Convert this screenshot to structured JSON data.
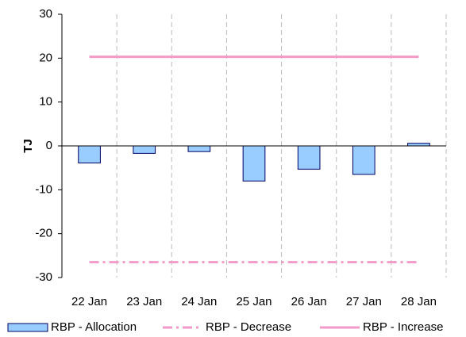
{
  "chart_data": {
    "type": "bar",
    "y_label": "TJ",
    "categories": [
      "22 Jan",
      "23 Jan",
      "24 Jan",
      "25 Jan",
      "26 Jan",
      "27 Jan",
      "28 Jan"
    ],
    "series": [
      {
        "name": "RBP - Allocation",
        "type": "bar",
        "color": "#99ccff",
        "values": [
          -3.9,
          -1.7,
          -1.3,
          -8.0,
          -5.3,
          -6.5,
          0.6
        ]
      },
      {
        "name": "RBP - Decrease",
        "type": "line",
        "dash": "dashdot",
        "color": "#f29ac8",
        "values": [
          -26.5,
          -26.5,
          -26.5,
          -26.5,
          -26.5,
          -26.5,
          -26.5
        ]
      },
      {
        "name": "RBP - Increase",
        "type": "line",
        "dash": "solid",
        "color": "#f29ac8",
        "values": [
          20.3,
          20.3,
          20.3,
          20.3,
          20.3,
          20.3,
          20.3
        ]
      }
    ],
    "ylim": [
      -30,
      30
    ],
    "yticks": [
      -30,
      -20,
      -10,
      0,
      10,
      20,
      30
    ],
    "grid": "x"
  }
}
